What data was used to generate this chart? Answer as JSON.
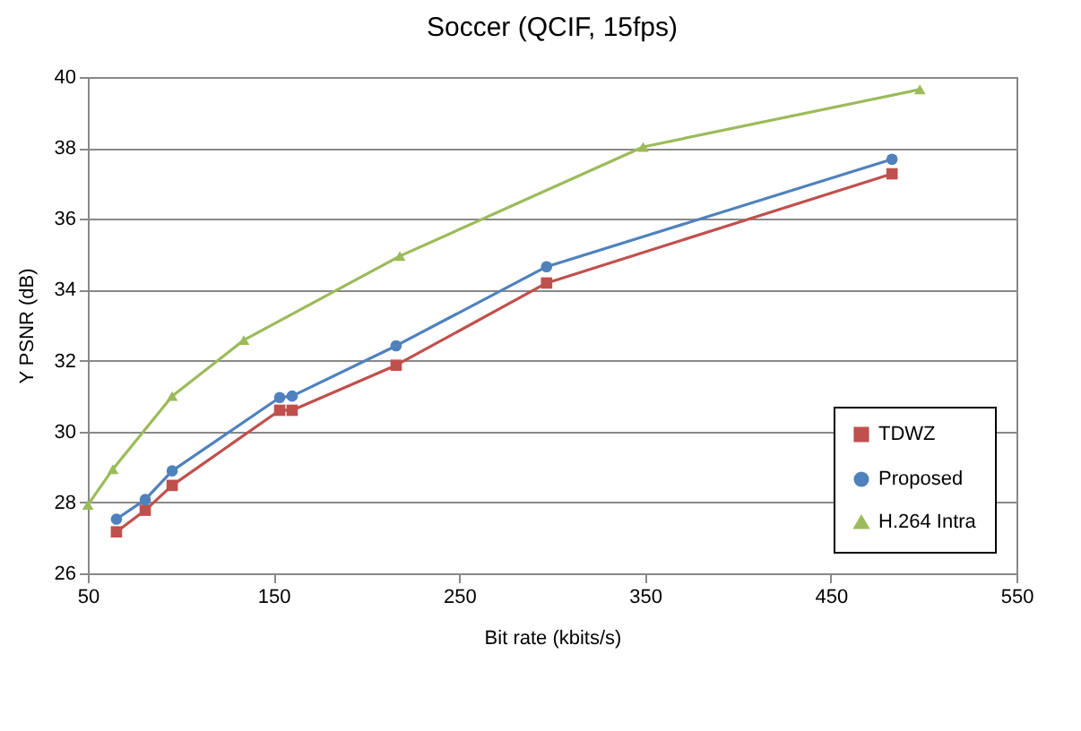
{
  "chart_data": {
    "type": "line",
    "title": "Soccer (QCIF, 15fps)",
    "xlabel": "Bit rate (kbits/s)",
    "ylabel": "Y PSNR (dB)",
    "xlim": [
      50,
      550
    ],
    "xticks": [
      50,
      150,
      250,
      350,
      450,
      550
    ],
    "ylim": [
      26,
      40
    ],
    "yticks": [
      26,
      28,
      30,
      32,
      34,
      36,
      38,
      40
    ],
    "grid": "y",
    "legend": "bottom right",
    "series": [
      {
        "name": "TDWZ",
        "color": "#c0504d",
        "marker": "square",
        "x": [
          65.4,
          80.9,
          95.4,
          153.3,
          160,
          216,
          297,
          483
        ],
        "values": [
          27.17,
          27.78,
          28.48,
          30.6,
          30.6,
          31.87,
          34.19,
          37.27
        ]
      },
      {
        "name": "Proposed",
        "color": "#4f81bd",
        "marker": "circle",
        "x": [
          65.4,
          80.9,
          95.4,
          153.3,
          160,
          216,
          297,
          483
        ],
        "values": [
          27.53,
          28.08,
          28.89,
          30.96,
          31.0,
          32.42,
          34.65,
          37.68
        ]
      },
      {
        "name": "H.264 Intra",
        "color": "#9bbb59",
        "marker": "triangle",
        "x": [
          50,
          63.5,
          95.4,
          134,
          218,
          349,
          498
        ],
        "values": [
          27.93,
          28.94,
          31.0,
          32.58,
          34.95,
          38.03,
          39.65
        ]
      }
    ]
  }
}
